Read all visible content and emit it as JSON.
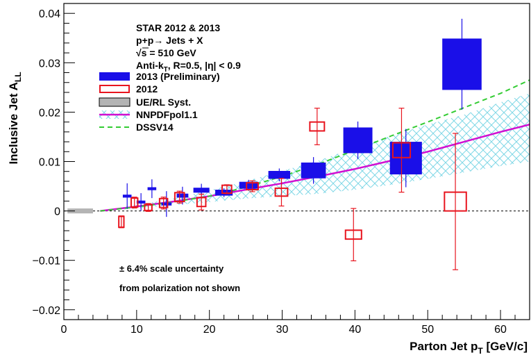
{
  "chart_data": {
    "type": "scatter",
    "title": "",
    "xlabel": "Parton Jet p",
    "xlabel_sub": "T",
    "xlabel_unit": " [GeV/c]",
    "ylabel": "Inclusive Jet A",
    "ylabel_sub": "LL",
    "xlim": [
      0,
      64
    ],
    "ylim": [
      -0.022,
      0.042
    ],
    "x_ticks": [
      0,
      10,
      20,
      30,
      40,
      50,
      60
    ],
    "x_tick_labels": [
      "0",
      "10",
      "20",
      "30",
      "40",
      "50",
      "60"
    ],
    "y_ticks": [
      -0.02,
      -0.01,
      0,
      0.01,
      0.02,
      0.03,
      0.04
    ],
    "y_tick_labels": [
      "−0.02",
      "−0.01",
      "0",
      "0.01",
      "0.02",
      "0.03",
      "0.04"
    ],
    "grid": false,
    "legend_position": "top-left",
    "header_lines": [
      {
        "text": "STAR 2012 & 2013"
      },
      {
        "text": "p+p→ Jets + X"
      },
      {
        "text": "√s = 510 GeV"
      },
      {
        "text": "Anti-k",
        "sub": "T",
        "rest": ", R=0.5, |η| < 0.9"
      }
    ],
    "legend": [
      {
        "label": "2013 (Preliminary)",
        "style": "filled-box",
        "color": "#1a0fe8"
      },
      {
        "label": "2012",
        "style": "open-box",
        "color": "#e8141e"
      },
      {
        "label": "UE/RL Syst.",
        "style": "gray-box",
        "color": "#b4b4b4"
      },
      {
        "label": "NNPDFpol1.1",
        "style": "band-line",
        "color": "#d10fd1"
      },
      {
        "label": "DSSV14",
        "style": "dashed-line",
        "color": "#33cc33"
      }
    ],
    "annotations": [
      "± 6.4% scale uncertainty",
      "from polarization not shown"
    ],
    "series": [
      {
        "name": "2013 (Preliminary)",
        "style": "filled",
        "color": "#1a0fe8",
        "points": [
          {
            "x": 8.7,
            "y": 0.003,
            "err": 0.0026,
            "syst_hw": 0.6,
            "syst_h": 0.0003
          },
          {
            "x": 10.6,
            "y": 0.0018,
            "err": 0.0018,
            "syst_hw": 0.6,
            "syst_h": 0.0003
          },
          {
            "x": 12.1,
            "y": 0.0045,
            "err": 0.0019,
            "syst_hw": 0.6,
            "syst_h": 0.0003
          },
          {
            "x": 14.1,
            "y": 0.0014,
            "err": 0.0026,
            "syst_hw": 0.7,
            "syst_h": 0.0003
          },
          {
            "x": 16.3,
            "y": 0.0031,
            "err": 0.0018,
            "syst_hw": 0.8,
            "syst_h": 0.0004
          },
          {
            "x": 18.9,
            "y": 0.0042,
            "err": 0.0013,
            "syst_hw": 1.1,
            "syst_h": 0.0005
          },
          {
            "x": 22.0,
            "y": 0.0037,
            "err": 0.0009,
            "syst_hw": 1.2,
            "syst_h": 0.0006
          },
          {
            "x": 25.4,
            "y": 0.0052,
            "err": 0.0011,
            "syst_hw": 1.3,
            "syst_h": 0.0007
          },
          {
            "x": 29.6,
            "y": 0.0073,
            "err": 0.0013,
            "syst_hw": 1.5,
            "syst_h": 0.0008
          },
          {
            "x": 34.3,
            "y": 0.0082,
            "err": 0.0027,
            "syst_hw": 1.7,
            "syst_h": 0.0016
          },
          {
            "x": 40.4,
            "y": 0.0143,
            "err": 0.0038,
            "syst_hw": 2.0,
            "syst_h": 0.0026
          },
          {
            "x": 47.0,
            "y": 0.0107,
            "err": 0.0059,
            "syst_hw": 2.2,
            "syst_h": 0.0033
          },
          {
            "x": 54.7,
            "y": 0.0297,
            "err": 0.0092,
            "syst_hw": 2.7,
            "syst_h": 0.0052
          }
        ]
      },
      {
        "name": "2012",
        "style": "open",
        "color": "#e8141e",
        "points": [
          {
            "x": 7.9,
            "y": -0.0022,
            "err": 0.0012,
            "syst_hw": 0.35,
            "syst_h": 0.0011
          },
          {
            "x": 9.7,
            "y": 0.0017,
            "err": 0.0011,
            "syst_hw": 0.45,
            "syst_h": 0.0009
          },
          {
            "x": 11.6,
            "y": 0.0007,
            "err": 0.0008,
            "syst_hw": 0.5,
            "syst_h": 0.0006
          },
          {
            "x": 13.7,
            "y": 0.0016,
            "err": 0.0012,
            "syst_hw": 0.55,
            "syst_h": 0.0009
          },
          {
            "x": 15.9,
            "y": 0.0028,
            "err": 0.0012,
            "syst_hw": 0.65,
            "syst_h": 0.0009
          },
          {
            "x": 18.9,
            "y": 0.0018,
            "err": 0.0016,
            "syst_hw": 0.6,
            "syst_h": 0.0009
          },
          {
            "x": 22.4,
            "y": 0.0044,
            "err": 0.0009,
            "syst_hw": 0.65,
            "syst_h": 0.0008
          },
          {
            "x": 25.9,
            "y": 0.005,
            "err": 0.0011,
            "syst_hw": 0.8,
            "syst_h": 0.0007
          },
          {
            "x": 29.9,
            "y": 0.0038,
            "err": 0.0028,
            "syst_hw": 0.85,
            "syst_h": 0.0008
          },
          {
            "x": 34.8,
            "y": 0.0171,
            "err": 0.0037,
            "syst_hw": 1.0,
            "syst_h": 0.0009
          },
          {
            "x": 39.8,
            "y": -0.0048,
            "err": 0.0053,
            "syst_hw": 1.1,
            "syst_h": 0.0009
          },
          {
            "x": 46.4,
            "y": 0.0123,
            "err": 0.0085,
            "syst_hw": 1.2,
            "syst_h": 0.0015
          },
          {
            "x": 53.8,
            "y": 0.0019,
            "err": 0.0138,
            "syst_hw": 1.5,
            "syst_h": 0.0019
          }
        ]
      },
      {
        "name": "UE/RL Syst.",
        "style": "gray-band",
        "color": "#b4b4b4",
        "x_range": [
          0.5,
          4.0
        ],
        "y": 0.0,
        "half_height": 0.0005
      }
    ],
    "theory": [
      {
        "name": "NNPDFpol1.1",
        "style": "band-line",
        "color": "#d10fd1",
        "band_color": "#7fd7e6",
        "x": [
          5,
          10,
          15,
          20,
          25,
          30,
          35,
          40,
          45,
          50,
          55,
          60,
          64
        ],
        "y": [
          0.0,
          0.0009,
          0.0019,
          0.003,
          0.0043,
          0.0056,
          0.007,
          0.0085,
          0.0102,
          0.012,
          0.014,
          0.016,
          0.0175
        ],
        "band_lo": [
          0.0,
          0.0005,
          0.0012,
          0.0018,
          0.0025,
          0.003,
          0.0035,
          0.0043,
          0.0053,
          0.0065,
          0.0078,
          0.0091,
          0.01
        ],
        "band_hi": [
          0.0,
          0.0012,
          0.0025,
          0.0042,
          0.006,
          0.0081,
          0.0102,
          0.0128,
          0.0152,
          0.0175,
          0.0195,
          0.022,
          0.0238
        ]
      },
      {
        "name": "DSSV14",
        "style": "dashed-line",
        "color": "#33cc33",
        "x": [
          5,
          10,
          15,
          20,
          25,
          30,
          35,
          40,
          45,
          50,
          55,
          60,
          64
        ],
        "y": [
          0.0,
          0.0008,
          0.0018,
          0.003,
          0.0048,
          0.007,
          0.0095,
          0.0123,
          0.0152,
          0.018,
          0.0209,
          0.0238,
          0.0265
        ]
      }
    ]
  }
}
